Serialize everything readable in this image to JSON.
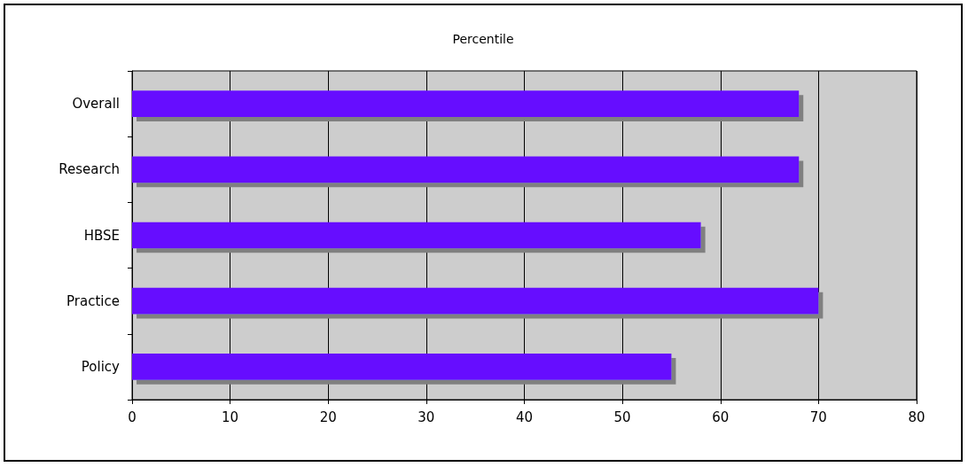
{
  "chart_data": {
    "type": "bar",
    "orientation": "horizontal",
    "title": "Percentile",
    "categories": [
      "Overall",
      "Research",
      "HBSE",
      "Practice",
      "Policy"
    ],
    "values": [
      68,
      68,
      58,
      70,
      55
    ],
    "color": "#6611ff",
    "xlim": [
      0,
      80
    ],
    "xticks": [
      0,
      10,
      20,
      30,
      40,
      50,
      60,
      70,
      80
    ],
    "grid": "x"
  }
}
